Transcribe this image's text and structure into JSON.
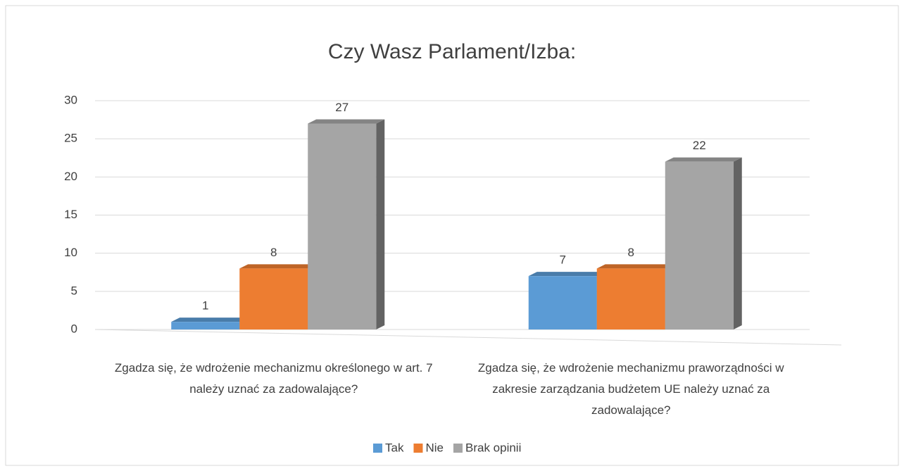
{
  "chart_data": {
    "type": "bar",
    "title": "Czy Wasz Parlament/Izba:",
    "categories": [
      "Zgadza się, że wdrożenie mechanizmu określonego w art. 7 należy uznać za zadowalające?",
      "Zgadza się, że wdrożenie mechanizmu praworządności w zakresie zarządzania budżetem UE należy uznać za zadowalające?"
    ],
    "series": [
      {
        "name": "Tak",
        "color": "#5b9bd5",
        "values": [
          1,
          7
        ]
      },
      {
        "name": "Nie",
        "color": "#ed7d31",
        "values": [
          8,
          8
        ]
      },
      {
        "name": "Brak opinii",
        "color": "#a5a5a5",
        "values": [
          27,
          22
        ]
      }
    ],
    "ylim": [
      0,
      30
    ],
    "yticks": [
      0,
      5,
      10,
      15,
      20,
      25,
      30
    ],
    "grid": true,
    "legend": "bottom",
    "data_labels": true
  }
}
